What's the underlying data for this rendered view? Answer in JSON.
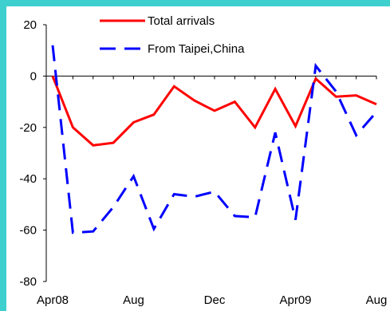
{
  "colors": {
    "background": "#3dd0cf",
    "plot": "#ffffff",
    "total": "#ff0000",
    "taipei": "#0000ff"
  },
  "chart_data": {
    "type": "line",
    "title": "",
    "xlabel": "",
    "ylabel": "",
    "ylim": [
      -80,
      20
    ],
    "yticks": [
      "20",
      "0",
      "-20",
      "-40",
      "-60",
      "-80"
    ],
    "x": [
      "Apr08",
      "May08",
      "Jun08",
      "Jul08",
      "Aug08",
      "Sep08",
      "Oct08",
      "Nov08",
      "Dec08",
      "Jan09",
      "Feb09",
      "Mar09",
      "Apr09",
      "May09",
      "Jun09",
      "Jul09",
      "Aug09"
    ],
    "xtick_labels": [
      "Apr08",
      "Aug",
      "Dec",
      "Apr09",
      "Aug"
    ],
    "series": [
      {
        "name": "Total arrivals",
        "style": "solid",
        "color": "#ff0000",
        "values": [
          0,
          -20,
          -27,
          -26,
          -18,
          -15,
          -4,
          -9.5,
          -13.5,
          -10,
          -20,
          -5,
          -19.5,
          -1,
          -8,
          -7.5,
          -11
        ]
      },
      {
        "name": "From Taipei,China",
        "style": "dashed",
        "color": "#0000ff",
        "values": [
          12,
          -61,
          -60.5,
          -51,
          -39,
          -59.5,
          -46,
          -47,
          -45,
          -54.5,
          -55,
          -22,
          -56,
          4,
          -6,
          -23,
          -14
        ]
      }
    ],
    "legend": "top-center",
    "grid": false
  }
}
